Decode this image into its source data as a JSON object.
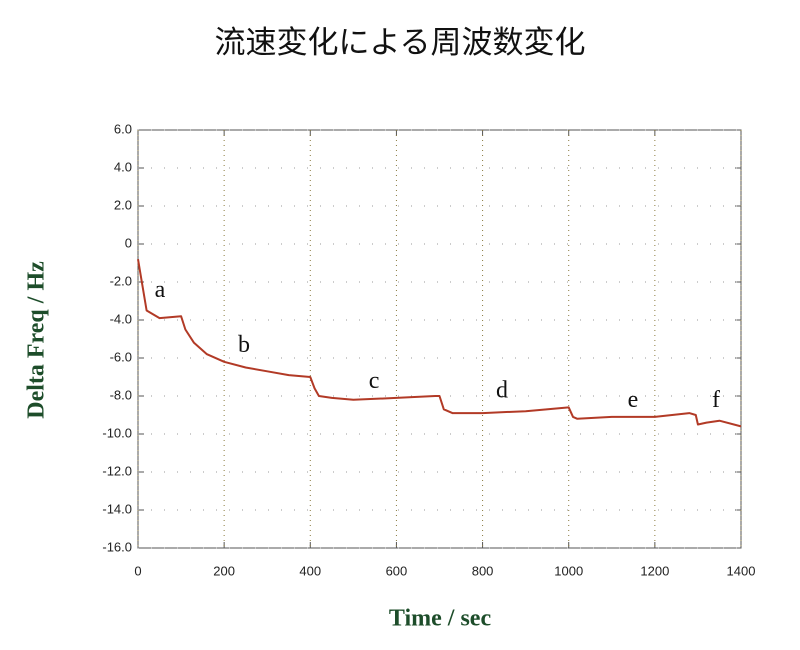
{
  "chart_data": {
    "type": "line",
    "title": "流速変化による周波数変化",
    "x_label": "Time / sec",
    "y_label": "Delta Freq / Hz",
    "x": [
      0,
      20,
      50,
      100,
      110,
      130,
      160,
      200,
      250,
      300,
      350,
      400,
      410,
      420,
      450,
      500,
      600,
      690,
      700,
      710,
      730,
      800,
      900,
      1000,
      1010,
      1020,
      1100,
      1200,
      1280,
      1295,
      1300,
      1320,
      1350,
      1400
    ],
    "series": [
      {
        "name": "Delta Freq",
        "color": "#b23a26",
        "values": [
          -0.8,
          -3.5,
          -3.9,
          -3.8,
          -4.5,
          -5.2,
          -5.8,
          -6.2,
          -6.5,
          -6.7,
          -6.9,
          -7.0,
          -7.6,
          -8.0,
          -8.1,
          -8.2,
          -8.1,
          -8.0,
          -8.0,
          -8.7,
          -8.9,
          -8.9,
          -8.8,
          -8.6,
          -9.1,
          -9.2,
          -9.1,
          -9.1,
          -8.9,
          -9.0,
          -9.5,
          -9.4,
          -9.3,
          -9.6
        ]
      }
    ],
    "annotations": [
      {
        "text": "a",
        "x": 51,
        "y": -2.5
      },
      {
        "text": "b",
        "x": 246,
        "y": -5.4
      },
      {
        "text": "c",
        "x": 548,
        "y": -7.3
      },
      {
        "text": "d",
        "x": 845,
        "y": -7.8
      },
      {
        "text": "e",
        "x": 1149,
        "y": -8.3
      },
      {
        "text": "f",
        "x": 1342,
        "y": -8.3
      }
    ],
    "xlim": [
      0,
      1400
    ],
    "xticks": [
      0,
      200,
      400,
      600,
      800,
      1000,
      1200,
      1400
    ],
    "ylim": [
      -16,
      6
    ],
    "yticks": [
      {
        "value": 6,
        "label": "6.0"
      },
      {
        "value": 4,
        "label": "4.0"
      },
      {
        "value": 2,
        "label": "2.0"
      },
      0,
      {
        "value": -2,
        "label": "-2.0"
      },
      {
        "value": -4,
        "label": "-4.0"
      },
      {
        "value": -6,
        "label": "-6.0"
      },
      {
        "value": -8,
        "label": "-8.0"
      },
      {
        "value": -10,
        "label": "-10.0"
      },
      {
        "value": -12,
        "label": "-12.0"
      },
      {
        "value": -14,
        "label": "-14.0"
      },
      {
        "value": -16,
        "label": "-16.0"
      }
    ],
    "grid": true
  }
}
